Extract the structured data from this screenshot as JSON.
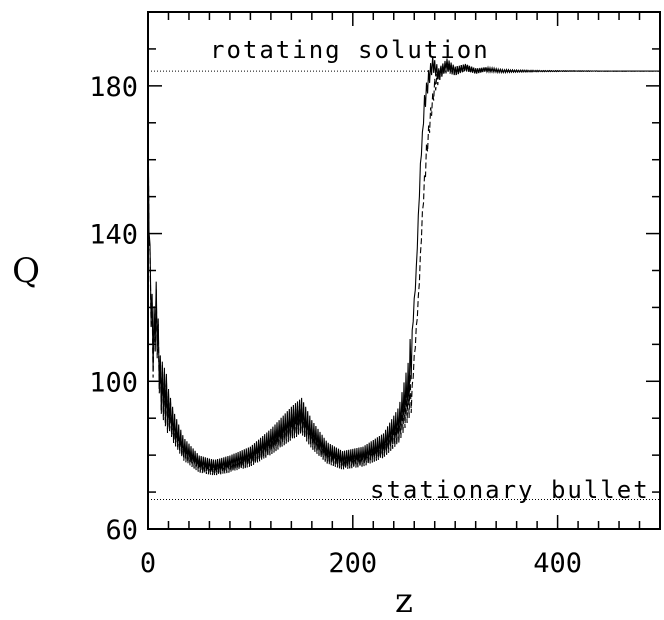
{
  "chart_data": {
    "type": "line",
    "title": "",
    "xlabel": "z",
    "ylabel": "Q",
    "xlim": [
      0,
      500
    ],
    "ylim": [
      60,
      200
    ],
    "x_ticks": [
      0,
      200,
      400
    ],
    "y_ticks": [
      60,
      100,
      140,
      180
    ],
    "grid": false,
    "annotations": [
      {
        "text": "rotating solution",
        "y": 184
      },
      {
        "text": "stationary bullet",
        "y": 68
      }
    ],
    "reference_lines": [
      {
        "y": 184,
        "style": "dotted"
      },
      {
        "y": 68,
        "style": "dotted"
      }
    ],
    "series": [
      {
        "style": "solid",
        "oscillating": true,
        "x": [
          0,
          2,
          5,
          8,
          12,
          18,
          25,
          35,
          50,
          65,
          80,
          100,
          120,
          140,
          150,
          160,
          175,
          190,
          210,
          230,
          245,
          255,
          262,
          266,
          270,
          274,
          278,
          284,
          292,
          300,
          310,
          320,
          330,
          345,
          360,
          380,
          400,
          450,
          500
        ],
        "y": [
          165,
          130,
          110,
          120,
          100,
          95,
          88,
          82,
          78,
          77,
          78,
          80,
          84,
          89,
          91,
          86,
          81,
          79,
          80,
          83,
          89,
          100,
          130,
          158,
          175,
          182,
          186,
          183,
          186,
          184,
          185,
          184,
          184.5,
          184,
          184,
          184,
          184,
          184,
          184
        ]
      },
      {
        "style": "dashed",
        "oscillating": true,
        "x": [
          0,
          2,
          5,
          8,
          12,
          18,
          25,
          35,
          50,
          65,
          80,
          100,
          120,
          140,
          150,
          160,
          175,
          190,
          210,
          230,
          245,
          258,
          264,
          268,
          272,
          276,
          280,
          286,
          292,
          300,
          310,
          320,
          330,
          345,
          360,
          380,
          400,
          450,
          500
        ],
        "y": [
          163,
          128,
          108,
          118,
          99,
          94,
          87,
          81,
          77,
          76,
          77,
          79,
          83,
          88,
          90,
          85,
          80,
          78,
          79,
          82,
          87,
          98,
          122,
          145,
          162,
          172,
          180,
          184,
          185,
          184,
          185,
          184,
          184.5,
          184,
          184,
          184,
          184,
          184,
          184
        ]
      }
    ]
  }
}
